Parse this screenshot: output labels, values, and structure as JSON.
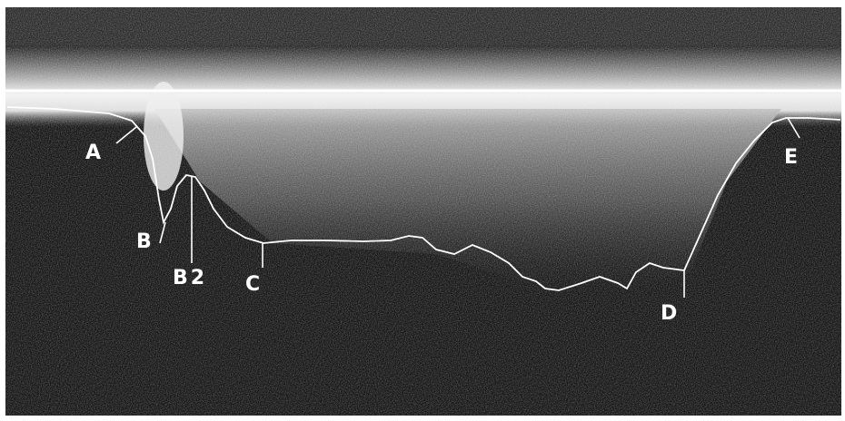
{
  "labels": [
    "A",
    "B",
    "B2",
    "C",
    "D",
    "E"
  ]
}
